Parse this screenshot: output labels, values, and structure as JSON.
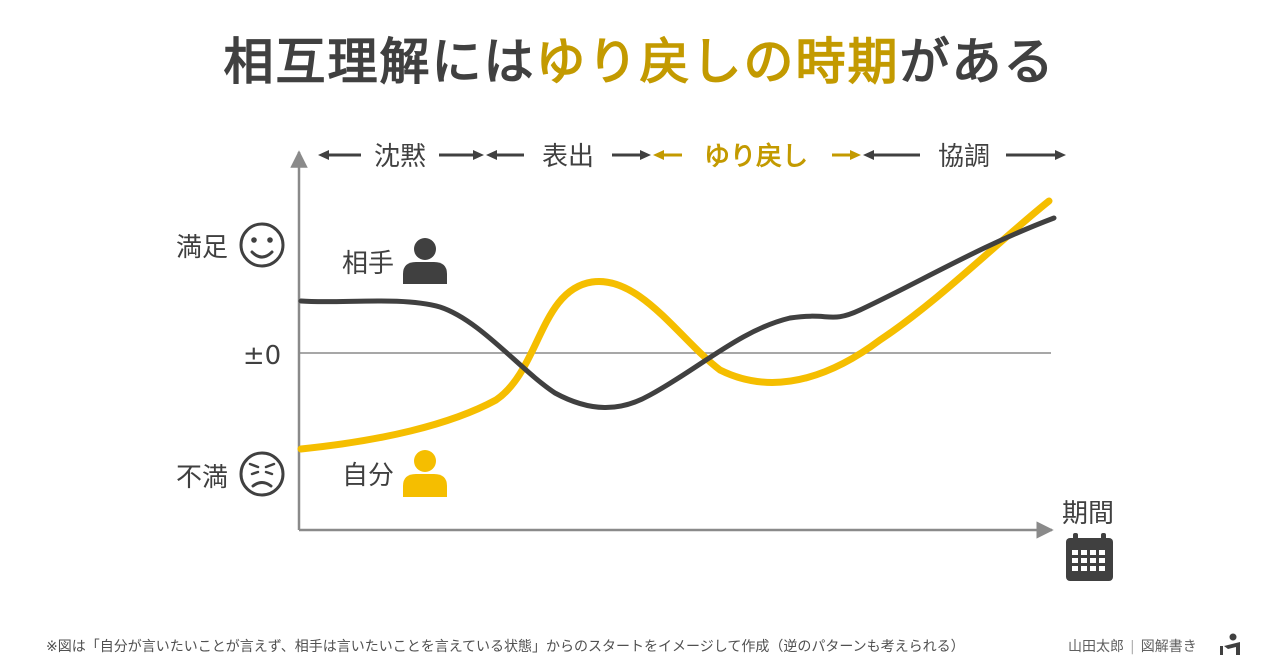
{
  "title": {
    "prefix": "相互理解には",
    "highlight": "ゆり戻しの時期",
    "suffix": "がある"
  },
  "phases": [
    {
      "label": "沈黙",
      "highlight": false
    },
    {
      "label": "表出",
      "highlight": false
    },
    {
      "label": "ゆり戻し",
      "highlight": true
    },
    {
      "label": "協調",
      "highlight": false
    }
  ],
  "y_labels": {
    "satisfied": "満足",
    "zero": "±0",
    "dissatisfied": "不満"
  },
  "x_label": "期間",
  "persons": {
    "partner": {
      "label": "相手",
      "color": "#404040"
    },
    "self": {
      "label": "自分",
      "color": "#f5be00"
    }
  },
  "colors": {
    "dark": "#404040",
    "accent": "#f5be00",
    "accent_text": "#c39a00",
    "axis": "#8a8a8a"
  },
  "icons": {
    "satisfied": "smile-face-icon",
    "dissatisfied": "worried-face-icon",
    "person": "person-icon",
    "calendar": "calendar-icon",
    "author": "author-mark-icon"
  },
  "footnote": "※図は「自分が言いたいことが言えず、相手は言いたいことを言えている状態」からのスタートをイメージして作成（逆のパターンも考えられる）",
  "credit": {
    "author": "山田太郎",
    "separator": "|",
    "series": "図解書き"
  }
}
